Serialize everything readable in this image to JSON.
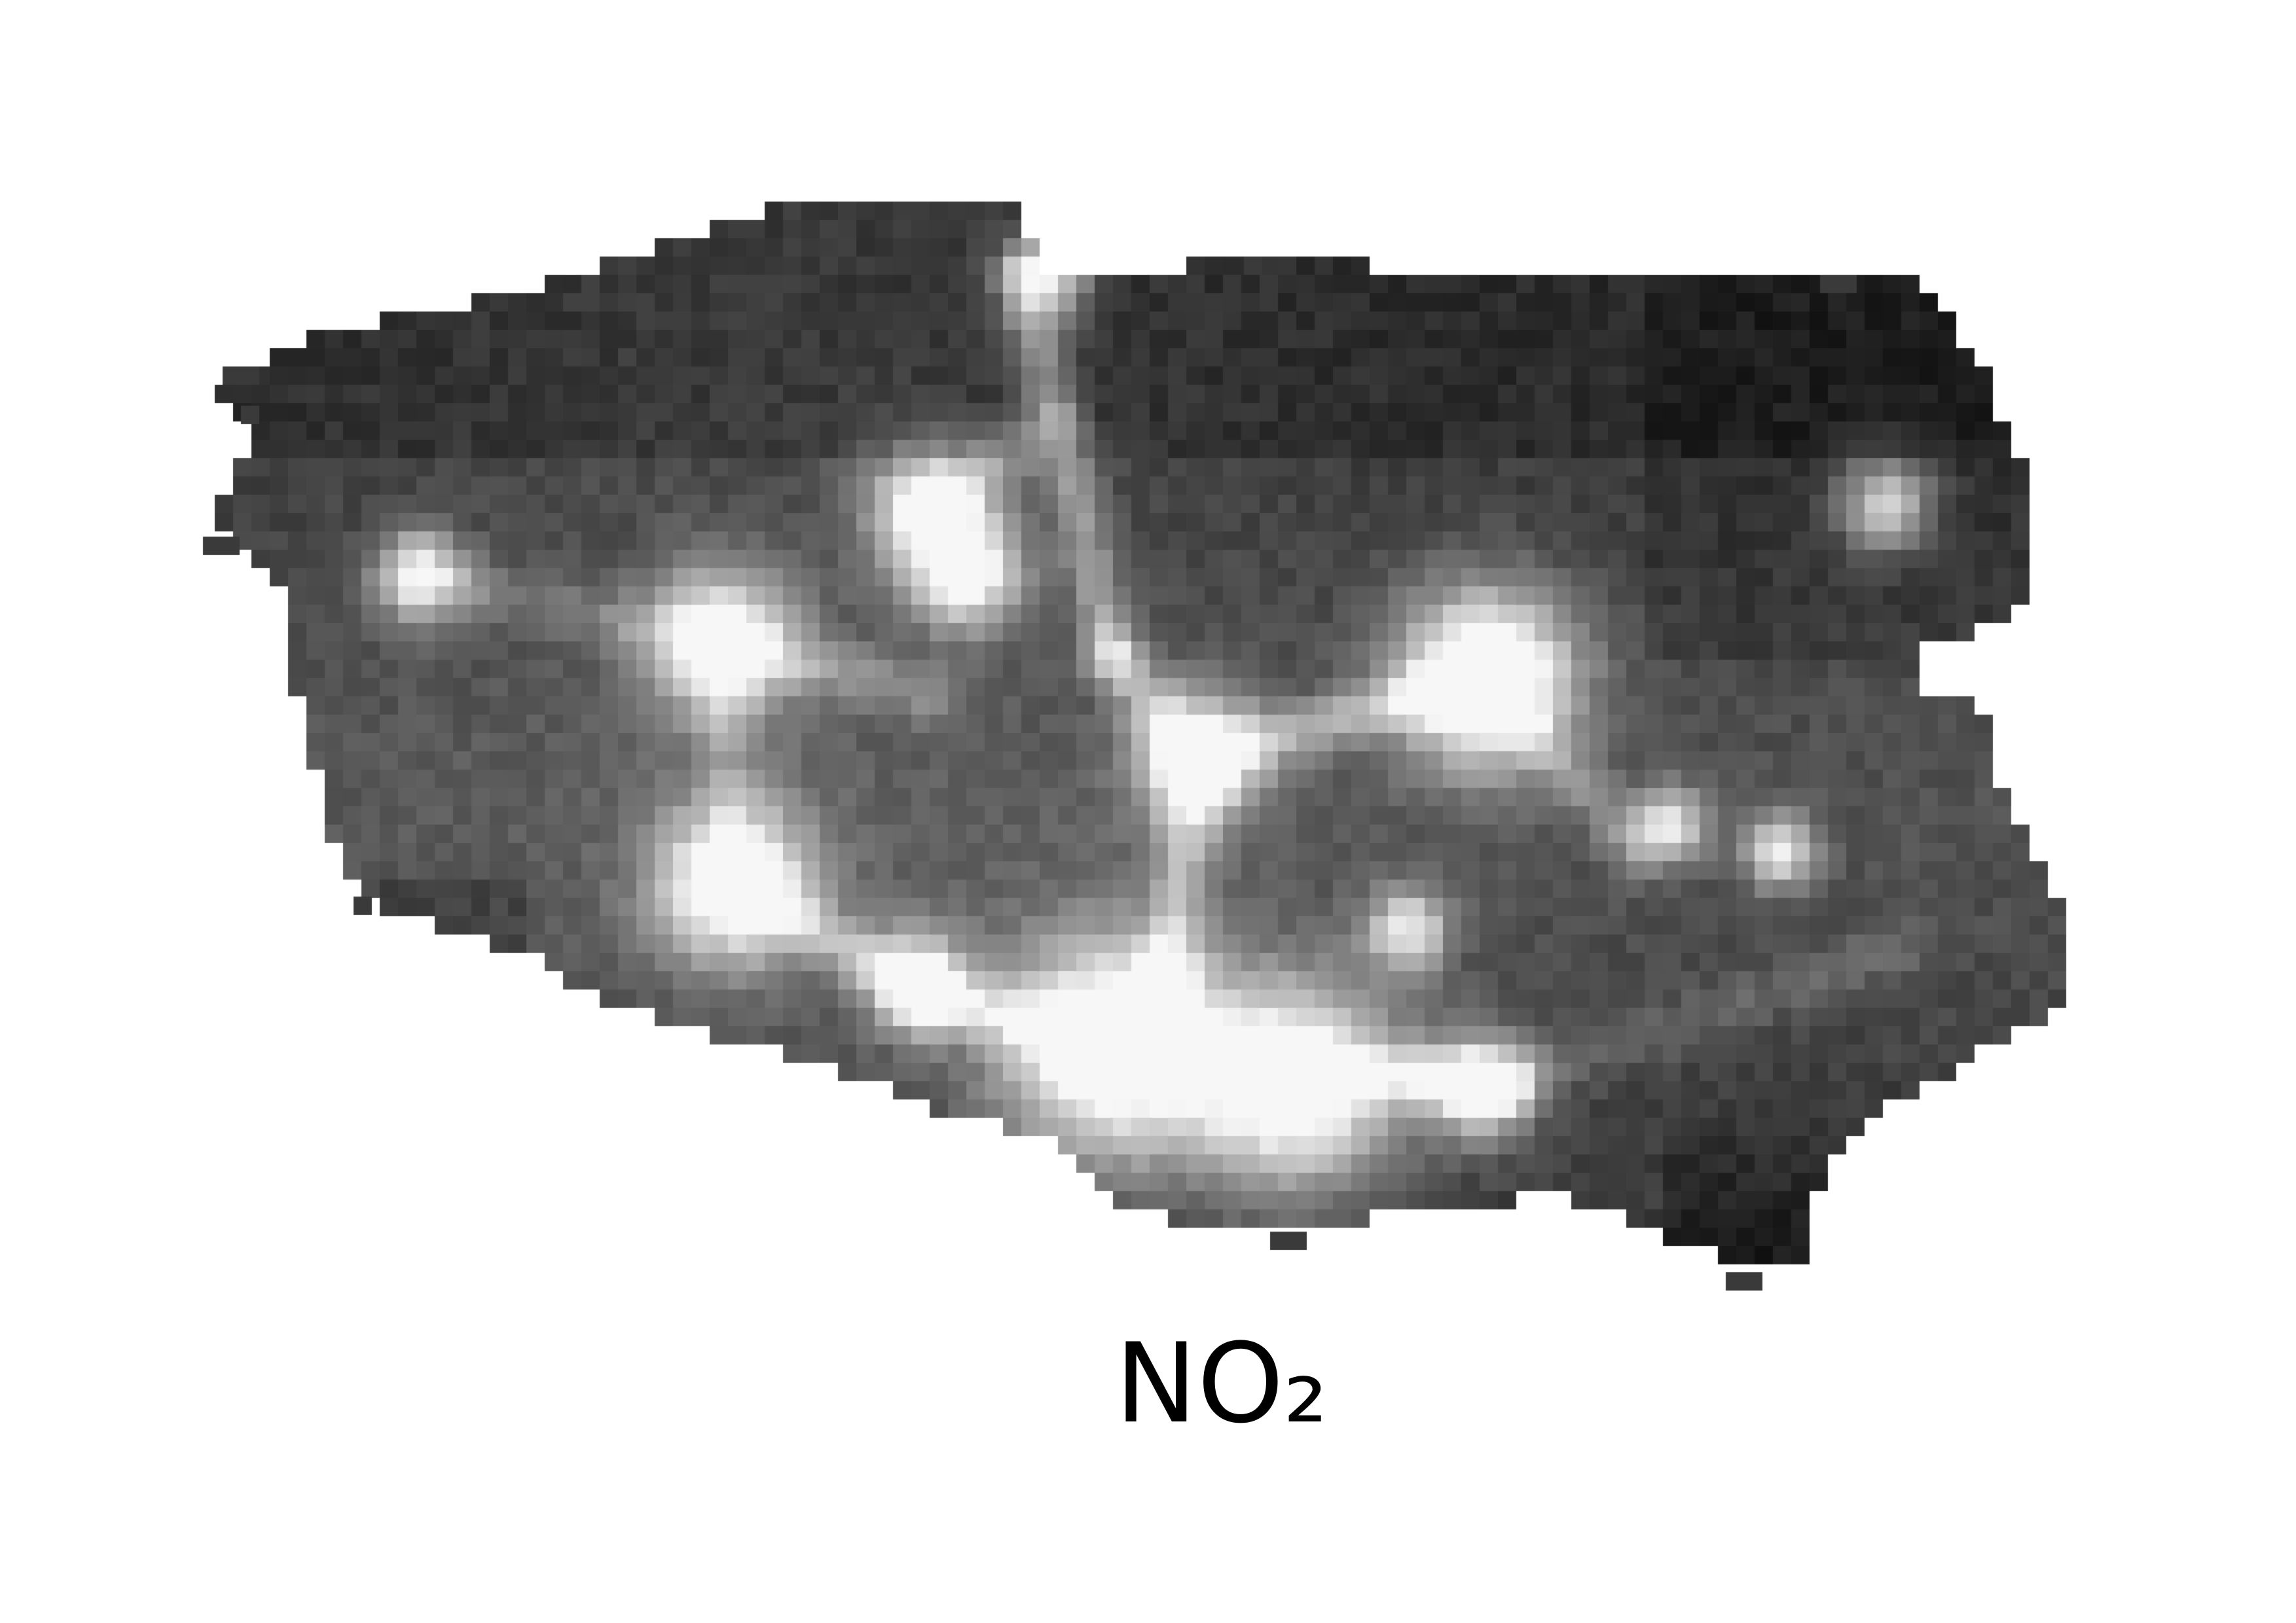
{
  "figure": {
    "caption": "NO₂",
    "colormap": "grayscale",
    "background_color": "#ffffff",
    "palette": {
      "low": "#0a0a0a",
      "base": "#3a3a3a",
      "mid": "#5e5e5e",
      "high": "#f0f0f0"
    },
    "hotspot_levels": [
      0.95,
      0.9,
      0.85,
      0.8,
      0.72,
      0.7,
      0.65,
      0.6
    ]
  }
}
